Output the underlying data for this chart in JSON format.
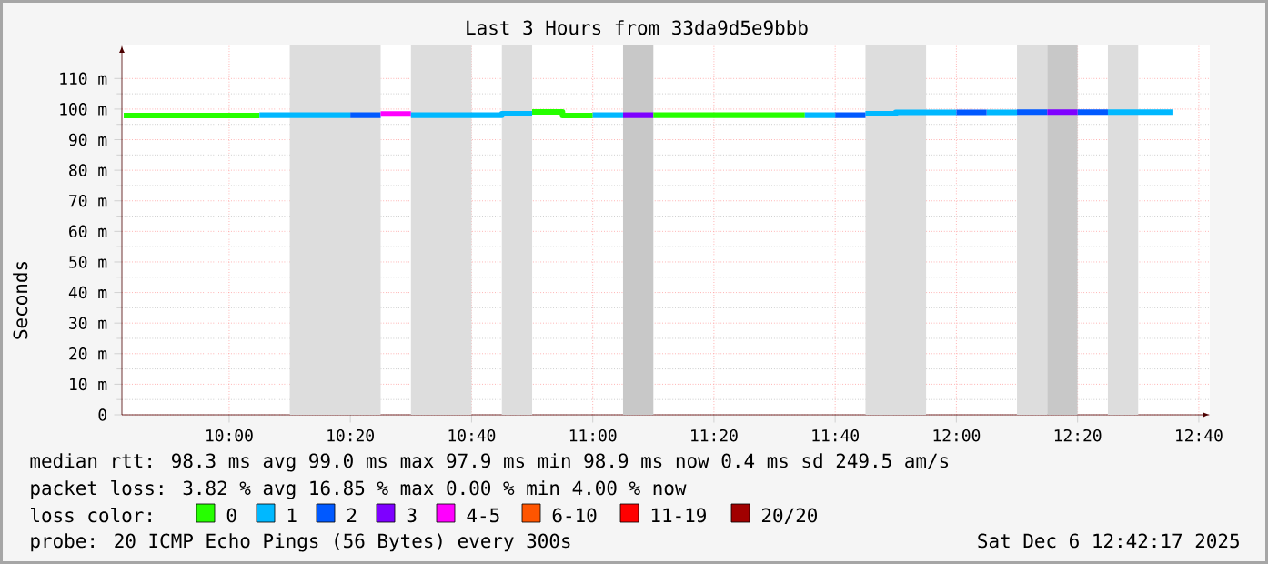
{
  "chart_data": {
    "type": "line",
    "title": "Last 3 Hours from 33da9d5e9bbb",
    "ylabel": "Seconds",
    "legend_title": "loss color:",
    "series": [
      {
        "name": "0",
        "color": "#26ff00",
        "x": [
          9.71,
          10.0833
        ],
        "values": [
          97.9,
          97.9
        ]
      },
      {
        "name": "1",
        "color": "#00b8ff",
        "x": [
          10.0833,
          10.3333
        ],
        "values": [
          98.0,
          98.0
        ]
      },
      {
        "name": "2",
        "color": "#0059ff",
        "x": [
          10.3333,
          10.4167
        ],
        "values": [
          98.0,
          98.0
        ]
      },
      {
        "name": "3",
        "color": "#7e00ff",
        "x": [
          11.0833,
          11.1667
        ],
        "values": [
          98.0,
          98.0
        ]
      },
      {
        "name": "4-5",
        "color": "#ff00fe",
        "x": [
          10.4167,
          10.5
        ],
        "values": [
          98.4,
          98.4
        ]
      },
      {
        "name": "6-10",
        "color": "#ff5500"
      },
      {
        "name": "11-19",
        "color": "#ff0000"
      },
      {
        "name": "20/20",
        "color": "#a10000"
      },
      {
        "color": "#26ff00",
        "x": [
          10.8333,
          10.9167,
          10.9167,
          11
        ],
        "values": [
          99.1,
          99.1,
          97.9,
          97.9
        ]
      },
      {
        "color": "#26ff00",
        "x": [
          11.1667,
          11.5833
        ],
        "values": [
          98.0,
          98.0
        ]
      },
      {
        "color": "#00b8ff",
        "x": [
          10.5,
          10.75,
          10.75,
          10.8333
        ],
        "values": [
          98.0,
          98.0,
          98.5,
          98.5
        ]
      },
      {
        "color": "#00b8ff",
        "x": [
          11,
          11.0833
        ],
        "values": [
          98.0,
          98.0
        ]
      },
      {
        "color": "#00b8ff",
        "x": [
          11.5833,
          11.6667
        ],
        "values": [
          98.0,
          98.0
        ]
      },
      {
        "color": "#00b8ff",
        "x": [
          11.75,
          11.8333,
          11.8333,
          12
        ],
        "values": [
          98.5,
          98.5,
          98.9,
          98.9
        ]
      },
      {
        "color": "#00b8ff",
        "x": [
          12.0833,
          12.1667
        ],
        "values": [
          98.9,
          98.9
        ]
      },
      {
        "color": "#00b8ff",
        "x": [
          12.4167,
          12.5967
        ],
        "values": [
          99.0,
          99.0
        ]
      },
      {
        "color": "#0059ff",
        "x": [
          11.6667,
          11.75
        ],
        "values": [
          98.0,
          98.0
        ]
      },
      {
        "color": "#0059ff",
        "x": [
          12,
          12.0833
        ],
        "values": [
          98.9,
          98.9
        ]
      },
      {
        "color": "#0059ff",
        "x": [
          12.1667,
          12.25
        ],
        "values": [
          99.0,
          99.0
        ]
      },
      {
        "color": "#0059ff",
        "x": [
          12.3333,
          12.4167
        ],
        "values": [
          99.0,
          99.0
        ]
      },
      {
        "color": "#7e00ff",
        "x": [
          12.25,
          12.3333
        ],
        "values": [
          99.0,
          99.0
        ]
      }
    ],
    "bands": [
      {
        "axis": "x",
        "from": 10.1667,
        "to": 10.4167,
        "color": "#dddddd"
      },
      {
        "axis": "x",
        "from": 10.5,
        "to": 10.6667,
        "color": "#dddddd"
      },
      {
        "axis": "x",
        "from": 10.75,
        "to": 10.8333,
        "color": "#dddddd"
      },
      {
        "axis": "x",
        "from": 11.0833,
        "to": 11.1667,
        "color": "#c8c8c8"
      },
      {
        "axis": "x",
        "from": 11.75,
        "to": 11.9167,
        "color": "#dddddd"
      },
      {
        "axis": "x",
        "from": 12.1667,
        "to": 12.25,
        "color": "#dddddd"
      },
      {
        "axis": "x",
        "from": 12.25,
        "to": 12.3333,
        "color": "#c8c8c8"
      },
      {
        "axis": "x",
        "from": 12.4167,
        "to": 12.5,
        "color": "#dddddd"
      }
    ],
    "xlim": [
      9.705,
      12.697
    ],
    "ylim": [
      0,
      120.8
    ],
    "xticks": [
      {
        "value": 10,
        "label": "10:00"
      },
      {
        "value": 10.3333,
        "label": "10:20"
      },
      {
        "value": 10.6667,
        "label": "10:40"
      },
      {
        "value": 11,
        "label": "11:00"
      },
      {
        "value": 11.3333,
        "label": "11:20"
      },
      {
        "value": 11.6667,
        "label": "11:40"
      },
      {
        "value": 12,
        "label": "12:00"
      },
      {
        "value": 12.3333,
        "label": "12:20"
      },
      {
        "value": 12.6667,
        "label": "12:40"
      }
    ],
    "yticks": [
      0,
      {
        "value": 10,
        "label": "10 m"
      },
      {
        "value": 20,
        "label": "20 m"
      },
      {
        "value": 30,
        "label": "30 m"
      },
      {
        "value": 40,
        "label": "40 m"
      },
      {
        "value": 50,
        "label": "50 m"
      },
      {
        "value": 60,
        "label": "60 m"
      },
      {
        "value": 70,
        "label": "70 m"
      },
      {
        "value": 80,
        "label": "80 m"
      },
      {
        "value": 90,
        "label": "90 m"
      },
      {
        "value": 100,
        "label": "100 m"
      },
      {
        "value": 110,
        "label": "110 m"
      }
    ],
    "grid": true,
    "legend": "bottom",
    "annotations": [
      "median rtt:  98.3 ms avg  99.0 ms max  97.9 ms min  98.9 ms now  0.4 ms sd  249.5   am/s",
      "packet loss: 3.82 % avg  16.85 % max  0.00 % min  4.00 % now",
      "probe:       20 ICMP Echo Pings (56 Bytes) every 300s",
      "Sat Dec  6 12:42:17 2025"
    ]
  }
}
